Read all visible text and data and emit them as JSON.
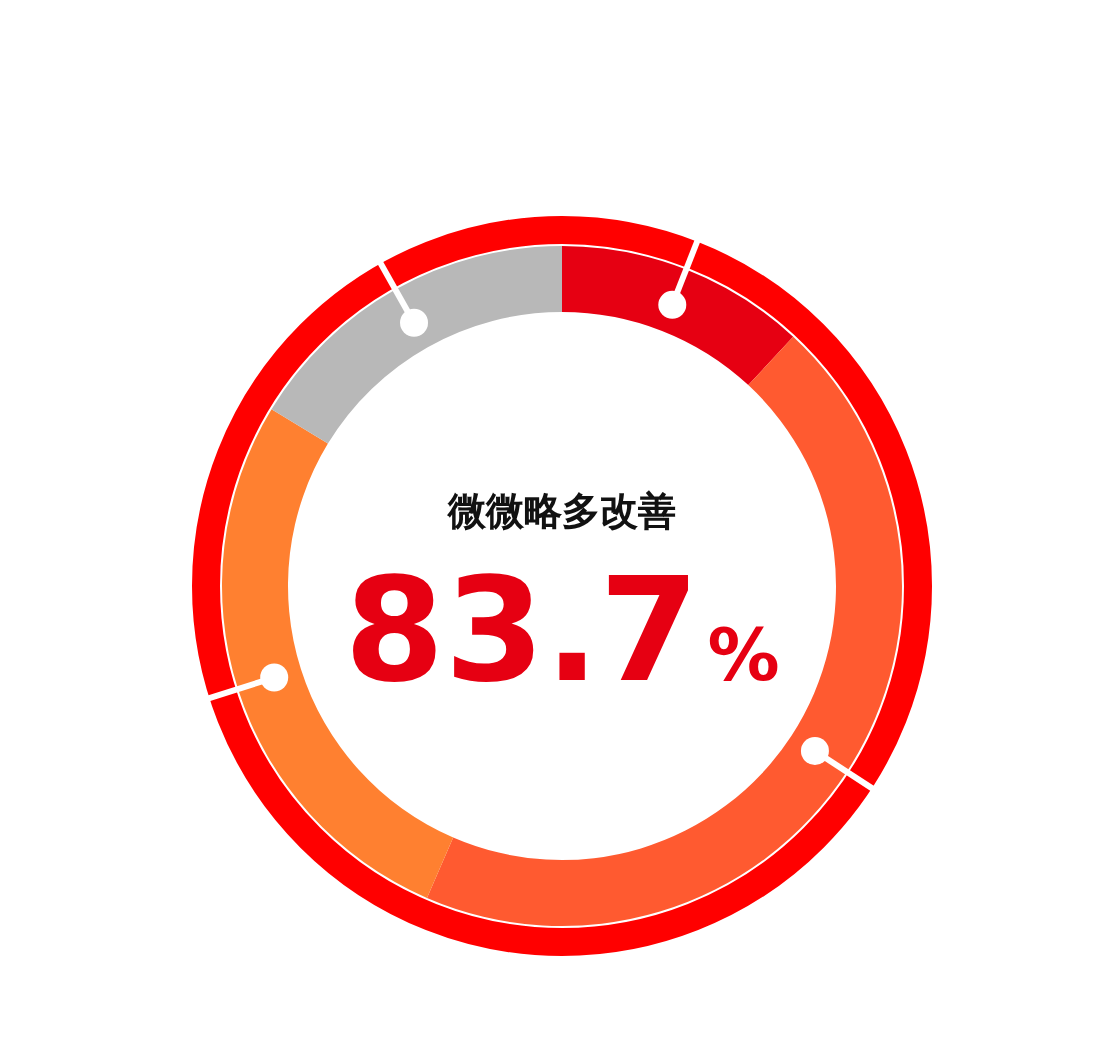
{
  "chart_data": {
    "type": "donut",
    "categories": [
      null,
      null,
      null,
      null
    ],
    "values": [
      11.9,
      44.6,
      27.2,
      16.3
    ],
    "colors": [
      "#e60012",
      "#ff5a30",
      "#ff8030",
      "#b8b8b8"
    ],
    "annotations": [
      "微微略多改善",
      "83.7%"
    ]
  }
}
